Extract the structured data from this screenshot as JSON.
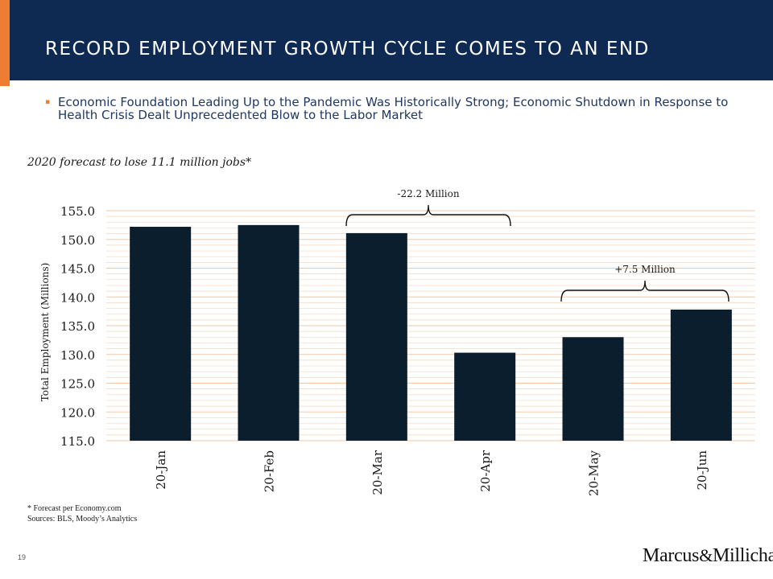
{
  "header": {
    "title": "RECORD EMPLOYMENT GROWTH CYCLE COMES TO AN END",
    "bullet": "Economic Foundation Leading Up to the Pandemic Was Historically Strong; Economic Shutdown in Response to Health Crisis Dealt Unprecedented Blow to the Labor Market",
    "bullet_mark": "▪"
  },
  "forecast_note": "2020 forecast to lose 11.1 million jobs*",
  "chart_data": {
    "type": "bar",
    "categories": [
      "20-Jan",
      "20-Feb",
      "20-Mar",
      "20-Apr",
      "20-May",
      "20-Jun"
    ],
    "values": [
      152.2,
      152.5,
      151.1,
      130.3,
      133.0,
      137.8
    ],
    "title": "",
    "xlabel": "",
    "ylabel": "Total Employment (Millions)",
    "ylim": [
      115.0,
      155.0
    ],
    "yticks": [
      "155.0",
      "150.0",
      "145.0",
      "140.0",
      "135.0",
      "130.0",
      "125.0",
      "120.0",
      "115.0"
    ],
    "grid": true,
    "bar_color": "#0b1e2d",
    "grid_color": "#f2c9a8",
    "annotations": [
      {
        "text": "-22.2 Million",
        "from": "20-Jan",
        "to": "20-Apr"
      },
      {
        "text": "+7.5 Million",
        "from": "20-May",
        "to": "20-Jun"
      }
    ]
  },
  "footnote": {
    "line1": "* Forecast per Economy.com",
    "line2": "Sources: BLS, Moody’s Analytics"
  },
  "page_number": "19",
  "logo": {
    "part1": "Marcus",
    "amp": "&",
    "part2": "Millichap"
  }
}
